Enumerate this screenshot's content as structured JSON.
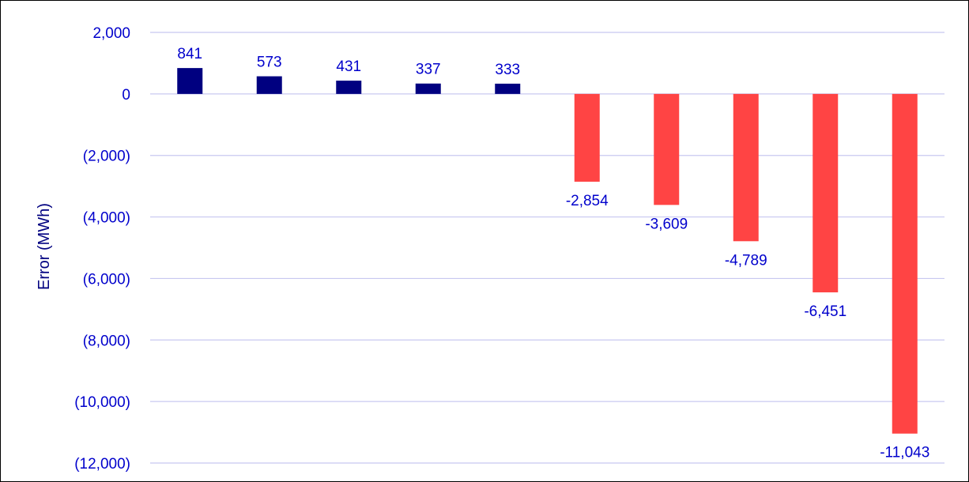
{
  "chart_data": {
    "type": "bar",
    "title": "",
    "xlabel": "",
    "ylabel": "Error (MWh)",
    "ylim": [
      -12000,
      2000
    ],
    "yticks": [
      2000,
      0,
      -2000,
      -4000,
      -6000,
      -8000,
      -10000,
      -12000
    ],
    "ytick_labels": [
      "2,000",
      "0",
      "(2,000)",
      "(4,000)",
      "(6,000)",
      "(8,000)",
      "(10,000)",
      "(12,000)"
    ],
    "values": [
      841,
      573,
      431,
      337,
      333,
      -2854,
      -3609,
      -4789,
      -6451,
      -11043
    ],
    "value_labels": [
      "841",
      "573",
      "431",
      "337",
      "333",
      "-2,854",
      "-3,609",
      "-4,789",
      "-6,451",
      "-11,043"
    ],
    "grid": true,
    "legend": "none",
    "colors": {
      "positive": "#000080",
      "negative": "#ff4444",
      "gridline": "#c8c8f0",
      "tick_text": "#0000cc",
      "axis_title": "#000080"
    }
  }
}
